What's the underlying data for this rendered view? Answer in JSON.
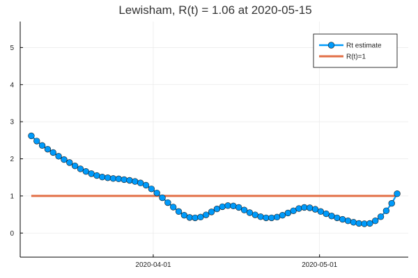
{
  "chart_data": {
    "type": "line",
    "title": "Lewisham, R(t) = 1.06 at 2020-05-15",
    "xlabel": "",
    "ylabel": "",
    "x_start": "2020-03-10",
    "x_end": "2020-05-15",
    "xlim": [
      "2020-03-08",
      "2020-05-17"
    ],
    "ylim": [
      -0.65,
      5.7
    ],
    "yticks": [
      0,
      1,
      2,
      3,
      4,
      5
    ],
    "xticks": [
      "2020-04-01",
      "2020-05-01"
    ],
    "grid": true,
    "legend_position": "top-right",
    "series": [
      {
        "name": "Rt estimate",
        "color": "#009AFA",
        "marker": "circle",
        "values": [
          2.62,
          2.48,
          2.36,
          2.26,
          2.17,
          2.07,
          1.98,
          1.9,
          1.81,
          1.73,
          1.66,
          1.6,
          1.55,
          1.51,
          1.49,
          1.47,
          1.46,
          1.44,
          1.42,
          1.39,
          1.35,
          1.29,
          1.19,
          1.08,
          0.95,
          0.82,
          0.7,
          0.58,
          0.48,
          0.42,
          0.41,
          0.43,
          0.49,
          0.57,
          0.65,
          0.71,
          0.74,
          0.73,
          0.69,
          0.62,
          0.55,
          0.49,
          0.44,
          0.41,
          0.41,
          0.43,
          0.48,
          0.54,
          0.6,
          0.66,
          0.69,
          0.68,
          0.64,
          0.58,
          0.52,
          0.46,
          0.41,
          0.37,
          0.33,
          0.29,
          0.26,
          0.25,
          0.26,
          0.33,
          0.44,
          0.6,
          0.8,
          1.06
        ]
      },
      {
        "name": "R(t)=1",
        "color": "#E26F46",
        "marker": "none",
        "values": [
          1,
          1
        ]
      }
    ]
  }
}
